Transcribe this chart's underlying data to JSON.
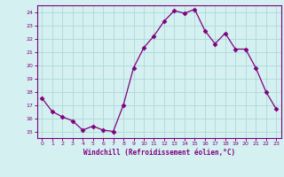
{
  "x": [
    0,
    1,
    2,
    3,
    4,
    5,
    6,
    7,
    8,
    9,
    10,
    11,
    12,
    13,
    14,
    15,
    16,
    17,
    18,
    19,
    20,
    21,
    22,
    23
  ],
  "y": [
    17.5,
    16.5,
    16.1,
    15.8,
    15.1,
    15.4,
    15.1,
    15.0,
    17.0,
    19.8,
    21.3,
    22.2,
    23.3,
    24.1,
    23.9,
    24.2,
    22.6,
    21.6,
    22.4,
    21.2,
    21.2,
    19.8,
    18.0,
    16.7
  ],
  "line_color": "#800080",
  "marker": "D",
  "marker_size": 2.5,
  "bg_color": "#d4f0f0",
  "grid_color": "#b0d8d8",
  "xlabel": "Windchill (Refroidissement éolien,°C)",
  "xlabel_color": "#800080",
  "tick_color": "#800080",
  "spine_color": "#800080",
  "ylim": [
    14.5,
    24.5
  ],
  "xlim": [
    -0.5,
    23.5
  ],
  "yticks": [
    15,
    16,
    17,
    18,
    19,
    20,
    21,
    22,
    23,
    24
  ],
  "xticks": [
    0,
    1,
    2,
    3,
    4,
    5,
    6,
    7,
    8,
    9,
    10,
    11,
    12,
    13,
    14,
    15,
    16,
    17,
    18,
    19,
    20,
    21,
    22,
    23
  ]
}
